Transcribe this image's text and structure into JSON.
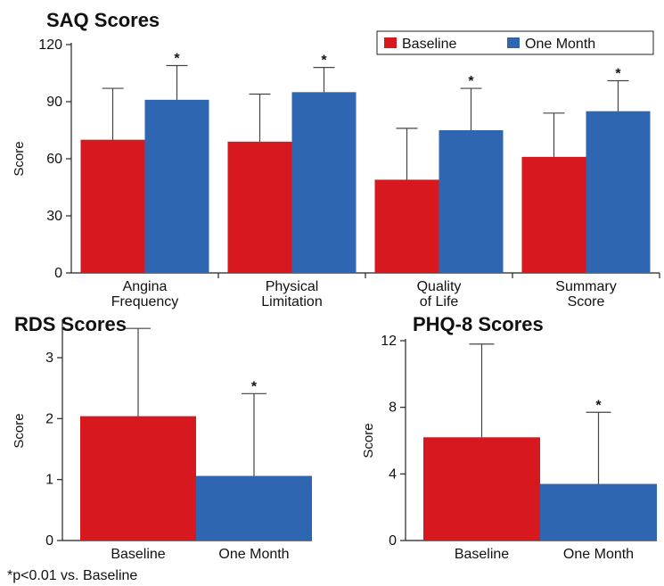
{
  "chart_data": [
    {
      "type": "bar",
      "title": "SAQ Scores",
      "ylabel": "Score",
      "ylim": [
        0,
        120
      ],
      "yticks": [
        0,
        30,
        60,
        90,
        120
      ],
      "categories": [
        "Angina\nFrequency",
        "Physical\nLimitation",
        "Quality\nof Life",
        "Summary\nScore"
      ],
      "series": [
        {
          "name": "Baseline",
          "color": "#d7191f",
          "values": [
            70,
            69,
            49,
            61
          ],
          "error": [
            27,
            25,
            27,
            23
          ]
        },
        {
          "name": "One Month",
          "color": "#2f66b2",
          "values": [
            91,
            95,
            75,
            85
          ],
          "error": [
            18,
            13,
            22,
            16
          ]
        }
      ],
      "significant": [
        false,
        true
      ],
      "significance_marker": "*",
      "legend": "top-right",
      "grid": false
    },
    {
      "type": "bar",
      "title": "RDS Scores",
      "ylabel": "Score",
      "ylim": [
        0,
        3.6
      ],
      "yticks": [
        0,
        1,
        2,
        3
      ],
      "categories": [
        "Baseline",
        "One Month"
      ],
      "colors": [
        "#d7191f",
        "#2f66b2"
      ],
      "values": [
        2.04,
        1.06
      ],
      "error": [
        1.44,
        1.35
      ],
      "significant": [
        false,
        true
      ],
      "significance_marker": "*",
      "grid": false
    },
    {
      "type": "bar",
      "title": "PHQ-8 Scores",
      "ylabel": "Score",
      "ylim": [
        0,
        12
      ],
      "yticks": [
        0,
        4,
        8,
        12
      ],
      "categories": [
        "Baseline",
        "One Month"
      ],
      "colors": [
        "#d7191f",
        "#2f66b2"
      ],
      "values": [
        6.2,
        3.4
      ],
      "error": [
        5.6,
        4.3
      ],
      "significant": [
        false,
        true
      ],
      "significance_marker": "*",
      "grid": false
    }
  ],
  "footnote": "*p<0.01 vs. Baseline"
}
